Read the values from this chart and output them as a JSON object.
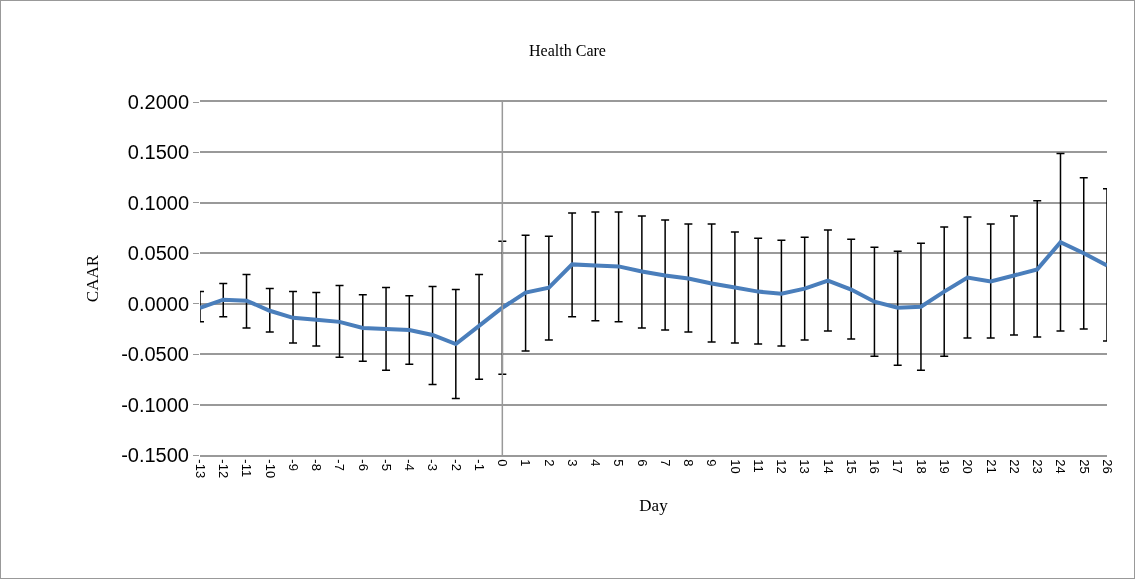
{
  "chart_data": {
    "type": "line",
    "title": "Health Care",
    "xlabel": "Day",
    "ylabel": "CAAR",
    "x": [
      -13,
      -12,
      -11,
      -10,
      -9,
      -8,
      -7,
      -6,
      -5,
      -4,
      -3,
      -2,
      -1,
      0,
      1,
      2,
      3,
      4,
      5,
      6,
      7,
      8,
      9,
      10,
      11,
      12,
      13,
      14,
      15,
      16,
      17,
      18,
      19,
      20,
      21,
      22,
      23,
      24,
      25,
      26
    ],
    "series": [
      {
        "color": "#4a7ebb",
        "values": [
          -0.004,
          0.004,
          0.003,
          -0.007,
          -0.014,
          -0.016,
          -0.018,
          -0.024,
          -0.025,
          -0.026,
          -0.031,
          -0.04,
          -0.022,
          -0.004,
          0.011,
          0.016,
          0.039,
          0.038,
          0.037,
          0.032,
          0.028,
          0.025,
          0.02,
          0.016,
          0.012,
          0.01,
          0.015,
          0.023,
          0.014,
          0.002,
          -0.004,
          -0.003,
          0.012,
          0.026,
          0.022,
          0.028,
          0.034,
          0.061,
          0.05,
          0.038
        ],
        "errors": [
          [
            -0.018,
            0.012
          ],
          [
            -0.013,
            0.02
          ],
          [
            -0.024,
            0.029
          ],
          [
            -0.028,
            0.015
          ],
          [
            -0.039,
            0.012
          ],
          [
            -0.042,
            0.011
          ],
          [
            -0.053,
            0.018
          ],
          [
            -0.057,
            0.009
          ],
          [
            -0.066,
            0.016
          ],
          [
            -0.06,
            0.008
          ],
          [
            -0.08,
            0.017
          ],
          [
            -0.094,
            0.014
          ],
          [
            -0.075,
            0.029
          ],
          [
            -0.07,
            0.062
          ],
          [
            -0.047,
            0.068
          ],
          [
            -0.036,
            0.067
          ],
          [
            -0.013,
            0.09
          ],
          [
            -0.017,
            0.091
          ],
          [
            -0.018,
            0.091
          ],
          [
            -0.024,
            0.087
          ],
          [
            -0.026,
            0.083
          ],
          [
            -0.028,
            0.079
          ],
          [
            -0.038,
            0.079
          ],
          [
            -0.039,
            0.071
          ],
          [
            -0.04,
            0.065
          ],
          [
            -0.042,
            0.063
          ],
          [
            -0.036,
            0.066
          ],
          [
            -0.027,
            0.073
          ],
          [
            -0.035,
            0.064
          ],
          [
            -0.052,
            0.056
          ],
          [
            -0.061,
            0.052
          ],
          [
            -0.066,
            0.06
          ],
          [
            -0.052,
            0.076
          ],
          [
            -0.034,
            0.086
          ],
          [
            -0.034,
            0.079
          ],
          [
            -0.031,
            0.087
          ],
          [
            -0.033,
            0.102
          ],
          [
            -0.027,
            0.149
          ],
          [
            -0.025,
            0.125
          ],
          [
            -0.037,
            0.114
          ]
        ]
      }
    ],
    "xlim": [
      -13,
      26
    ],
    "xticks": [
      -13,
      -12,
      -11,
      -10,
      -9,
      -8,
      -7,
      -6,
      -5,
      -4,
      -3,
      -2,
      -1,
      0,
      1,
      2,
      3,
      4,
      5,
      6,
      7,
      8,
      9,
      10,
      11,
      12,
      13,
      14,
      15,
      16,
      17,
      18,
      19,
      20,
      21,
      22,
      23,
      24,
      25,
      26
    ],
    "ylim": [
      -0.15,
      0.2
    ],
    "yticks": [
      {
        "value": -0.15,
        "label": "-0.1500"
      },
      {
        "value": -0.1,
        "label": "-0.1000"
      },
      {
        "value": -0.05,
        "label": "-0.0500"
      },
      {
        "value": 0,
        "label": "0.0000"
      },
      {
        "value": 0.05,
        "label": "0.0500"
      },
      {
        "value": 0.1,
        "label": "0.1000"
      },
      {
        "value": 0.15,
        "label": "0.1500"
      },
      {
        "value": 0.2,
        "label": "0.2000"
      }
    ],
    "ref_lines": [
      {
        "axis": "x",
        "value": 0,
        "color": "#999999"
      }
    ],
    "grid": "y",
    "marker": "none",
    "line_style": "solid"
  }
}
